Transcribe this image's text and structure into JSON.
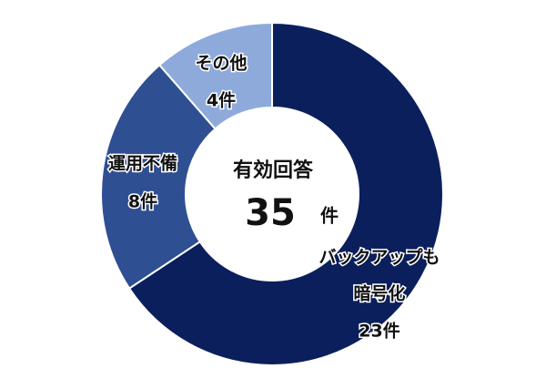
{
  "chart_data": {
    "type": "pie",
    "donut": true,
    "start": "top",
    "direction": "clockwise",
    "center_label": {
      "title": "有効回答",
      "value": "35",
      "unit": "件"
    },
    "slices": [
      {
        "label_lines": [
          "バックアップも",
          "暗号化"
        ],
        "count_label": "23件",
        "value": 23,
        "color": "#0b1f5c"
      },
      {
        "label_lines": [
          "運用不備"
        ],
        "count_label": "8件",
        "value": 8,
        "color": "#2f4f93"
      },
      {
        "label_lines": [
          "その他"
        ],
        "count_label": "4件",
        "value": 4,
        "color": "#8eaadb"
      }
    ]
  }
}
